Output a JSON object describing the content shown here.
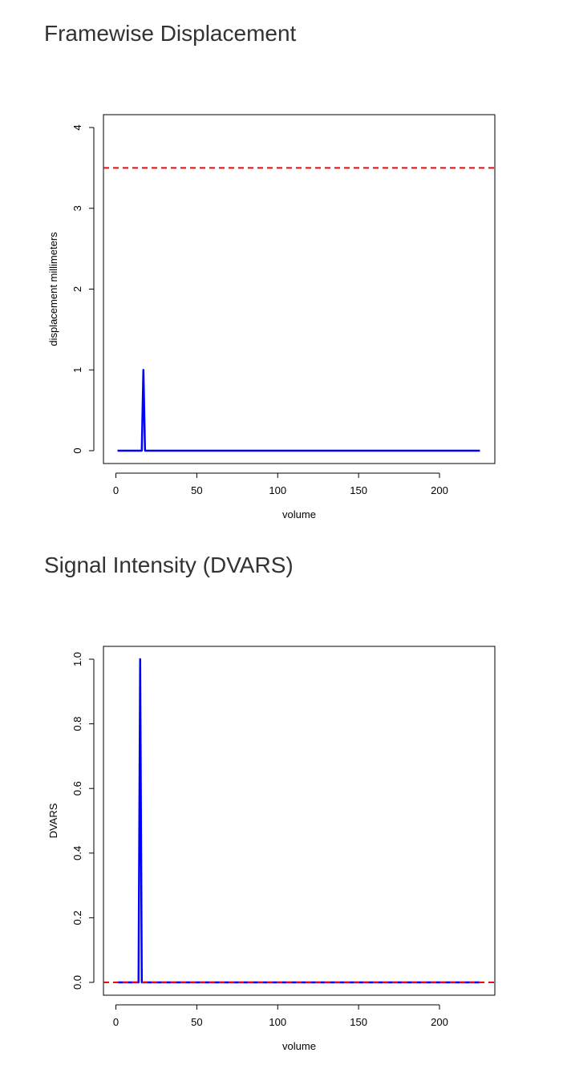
{
  "sections": [
    {
      "title": "Framewise Displacement"
    },
    {
      "title": "Signal Intensity (DVARS)"
    }
  ],
  "colors": {
    "series": "#0000ff",
    "threshold": "#ff0000",
    "axis": "#000000",
    "title": "#333333"
  },
  "chart_data": [
    {
      "type": "line",
      "title": "",
      "xlabel": "volume",
      "ylabel": "displacement millimeters",
      "xlim": [
        1,
        225
      ],
      "ylim": [
        0,
        4
      ],
      "xticks": [
        0,
        50,
        100,
        150,
        200
      ],
      "yticks": [
        0,
        1,
        2,
        3,
        4
      ],
      "ytick_labels": [
        "0",
        "1",
        "2",
        "3",
        "4"
      ],
      "grid": false,
      "legend": "none",
      "series": [
        {
          "x": [
            1,
            16,
            17,
            18,
            225
          ],
          "values": [
            0,
            0,
            1,
            0,
            0
          ]
        }
      ],
      "threshold": {
        "y": 3.5,
        "style": "dashed"
      }
    },
    {
      "type": "line",
      "title": "",
      "xlabel": "volume",
      "ylabel": "DVARS",
      "xlim": [
        1,
        225
      ],
      "ylim": [
        0,
        1
      ],
      "xticks": [
        0,
        50,
        100,
        150,
        200
      ],
      "yticks": [
        0,
        0.2,
        0.4,
        0.6,
        0.8,
        1.0
      ],
      "ytick_labels": [
        "0.0",
        "0.2",
        "0.4",
        "0.6",
        "0.8",
        "1.0"
      ],
      "grid": false,
      "legend": "none",
      "series": [
        {
          "x": [
            1,
            14,
            15,
            16,
            225
          ],
          "values": [
            0,
            0,
            1,
            0,
            0
          ]
        }
      ],
      "threshold": {
        "y": 0,
        "style": "dashed"
      }
    }
  ]
}
